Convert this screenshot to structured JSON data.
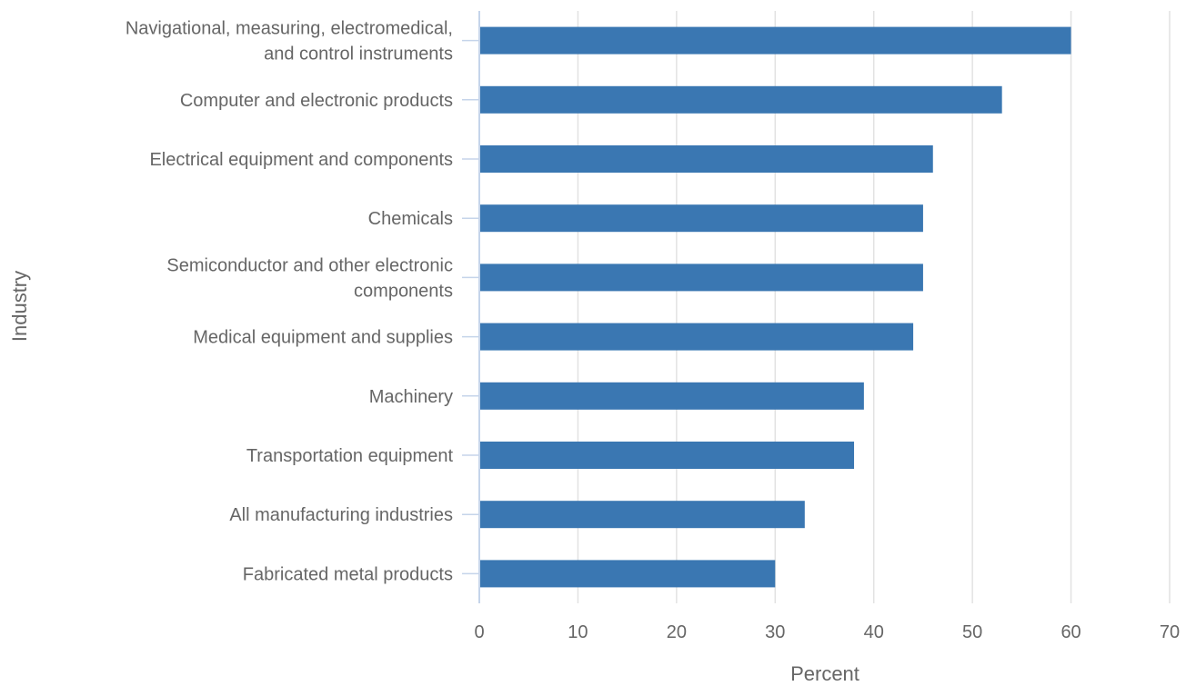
{
  "chart_data": {
    "type": "bar",
    "orientation": "horizontal",
    "title": "",
    "xlabel": "Percent",
    "ylabel": "Industry",
    "xlim": [
      0,
      70
    ],
    "xticks": [
      0,
      10,
      20,
      30,
      40,
      50,
      60,
      70
    ],
    "grid": true,
    "legend": "none",
    "bar_color": "#3a77b2",
    "categories": [
      [
        "Navigational, measuring, electromedical,",
        "and control instruments"
      ],
      [
        "Computer and electronic products"
      ],
      [
        "Electrical equipment and components"
      ],
      [
        "Chemicals"
      ],
      [
        "Semiconductor and other electronic",
        "components"
      ],
      [
        "Medical equipment and supplies"
      ],
      [
        "Machinery"
      ],
      [
        "Transportation equipment"
      ],
      [
        "All manufacturing industries"
      ],
      [
        "Fabricated metal products"
      ]
    ],
    "values": [
      60,
      53,
      46,
      45,
      45,
      44,
      39,
      38,
      33,
      30
    ]
  }
}
